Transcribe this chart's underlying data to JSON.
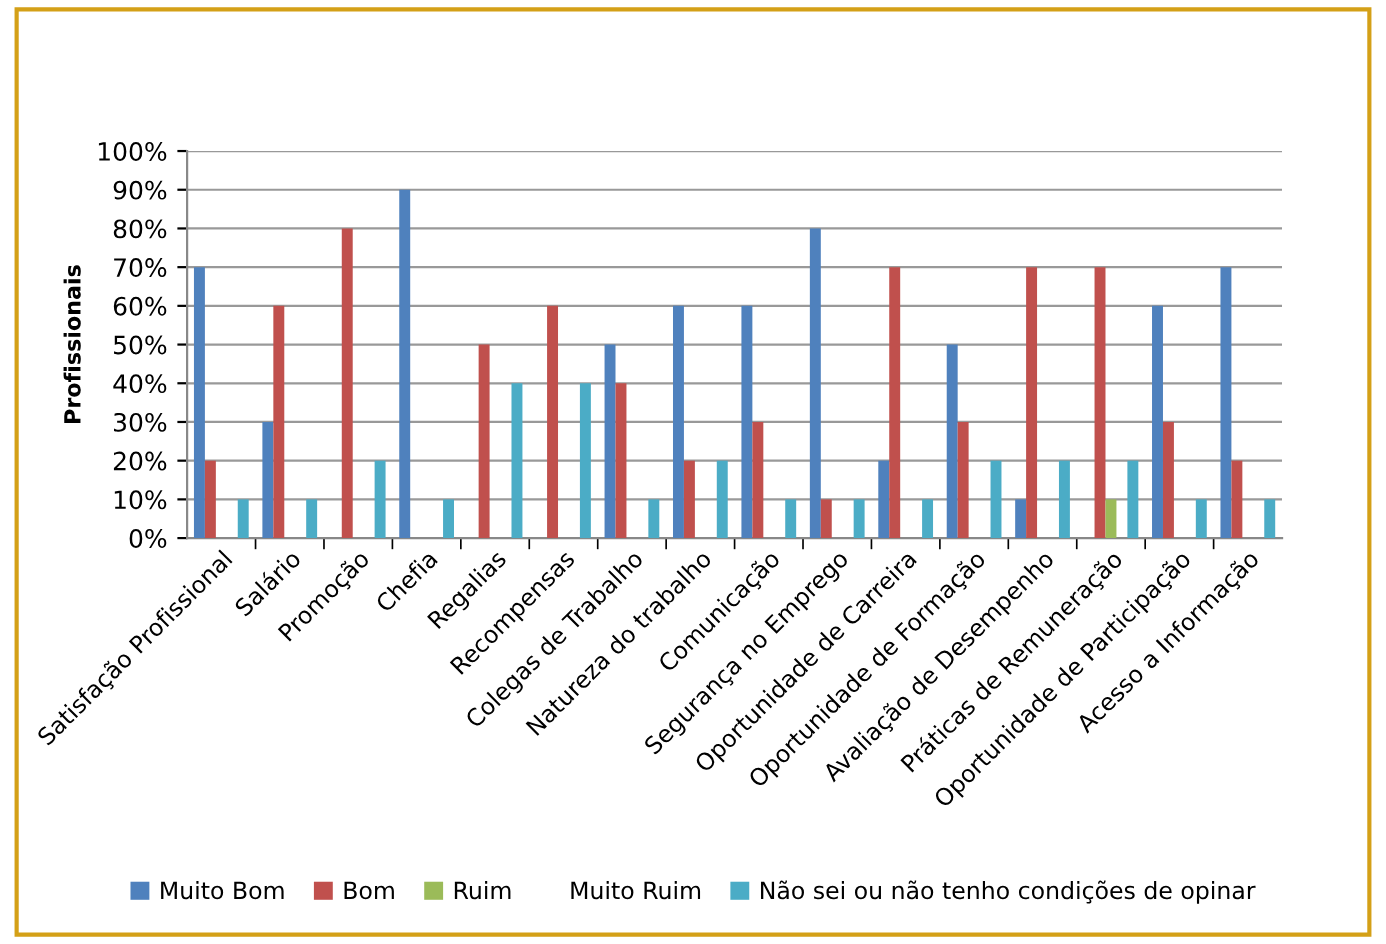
{
  "chart_data": {
    "type": "bar",
    "ylabel": "Profissionais",
    "categories": [
      "Satisfação Profissional",
      "Salário",
      "Promoção",
      "Chefia",
      "Regalias",
      "Recompensas",
      "Colegas de Trabalho",
      "Natureza do trabalho",
      "Comunicação",
      "Segurança no Emprego",
      "Oportunidade de Carreira",
      "Oportunidade de Formação",
      "Avaliação de Desempenho",
      "Práticas de Remuneração",
      "Oportunidade de Participação",
      "Acesso a Informação"
    ],
    "series": [
      {
        "name": "Muito Bom",
        "color": "#4f81bd",
        "values": [
          70,
          30,
          0,
          90,
          0,
          0,
          50,
          60,
          60,
          80,
          20,
          50,
          10,
          0,
          60,
          70
        ]
      },
      {
        "name": "Bom",
        "color": "#c0504d",
        "values": [
          20,
          60,
          80,
          0,
          50,
          60,
          40,
          20,
          30,
          10,
          70,
          30,
          70,
          70,
          30,
          20
        ]
      },
      {
        "name": "Ruim",
        "color": "#9bbb59",
        "values": [
          0,
          0,
          0,
          0,
          0,
          0,
          0,
          0,
          0,
          0,
          0,
          0,
          0,
          10,
          0,
          0
        ]
      },
      {
        "name": "Muito Ruim",
        "values": [
          0,
          0,
          0,
          0,
          0,
          0,
          0,
          0,
          0,
          0,
          0,
          0,
          0,
          0,
          0,
          0
        ]
      },
      {
        "name": "Não sei ou não tenho condições de opinar",
        "color": "#4bacc6",
        "values": [
          10,
          10,
          20,
          10,
          40,
          40,
          10,
          20,
          10,
          10,
          10,
          20,
          20,
          20,
          10,
          10
        ]
      }
    ],
    "ylim": [
      0,
      100
    ],
    "yticks": [
      {
        "value": 0,
        "label": "0%"
      },
      {
        "value": 10,
        "label": "10%"
      },
      {
        "value": 20,
        "label": "20%"
      },
      {
        "value": 30,
        "label": "30%"
      },
      {
        "value": 40,
        "label": "40%"
      },
      {
        "value": 50,
        "label": "50%"
      },
      {
        "value": 60,
        "label": "60%"
      },
      {
        "value": 70,
        "label": "70%"
      },
      {
        "value": 80,
        "label": "80%"
      },
      {
        "value": 90,
        "label": "90%"
      },
      {
        "value": 100,
        "label": "100%"
      }
    ],
    "grid": "y",
    "legend": "bottom"
  }
}
